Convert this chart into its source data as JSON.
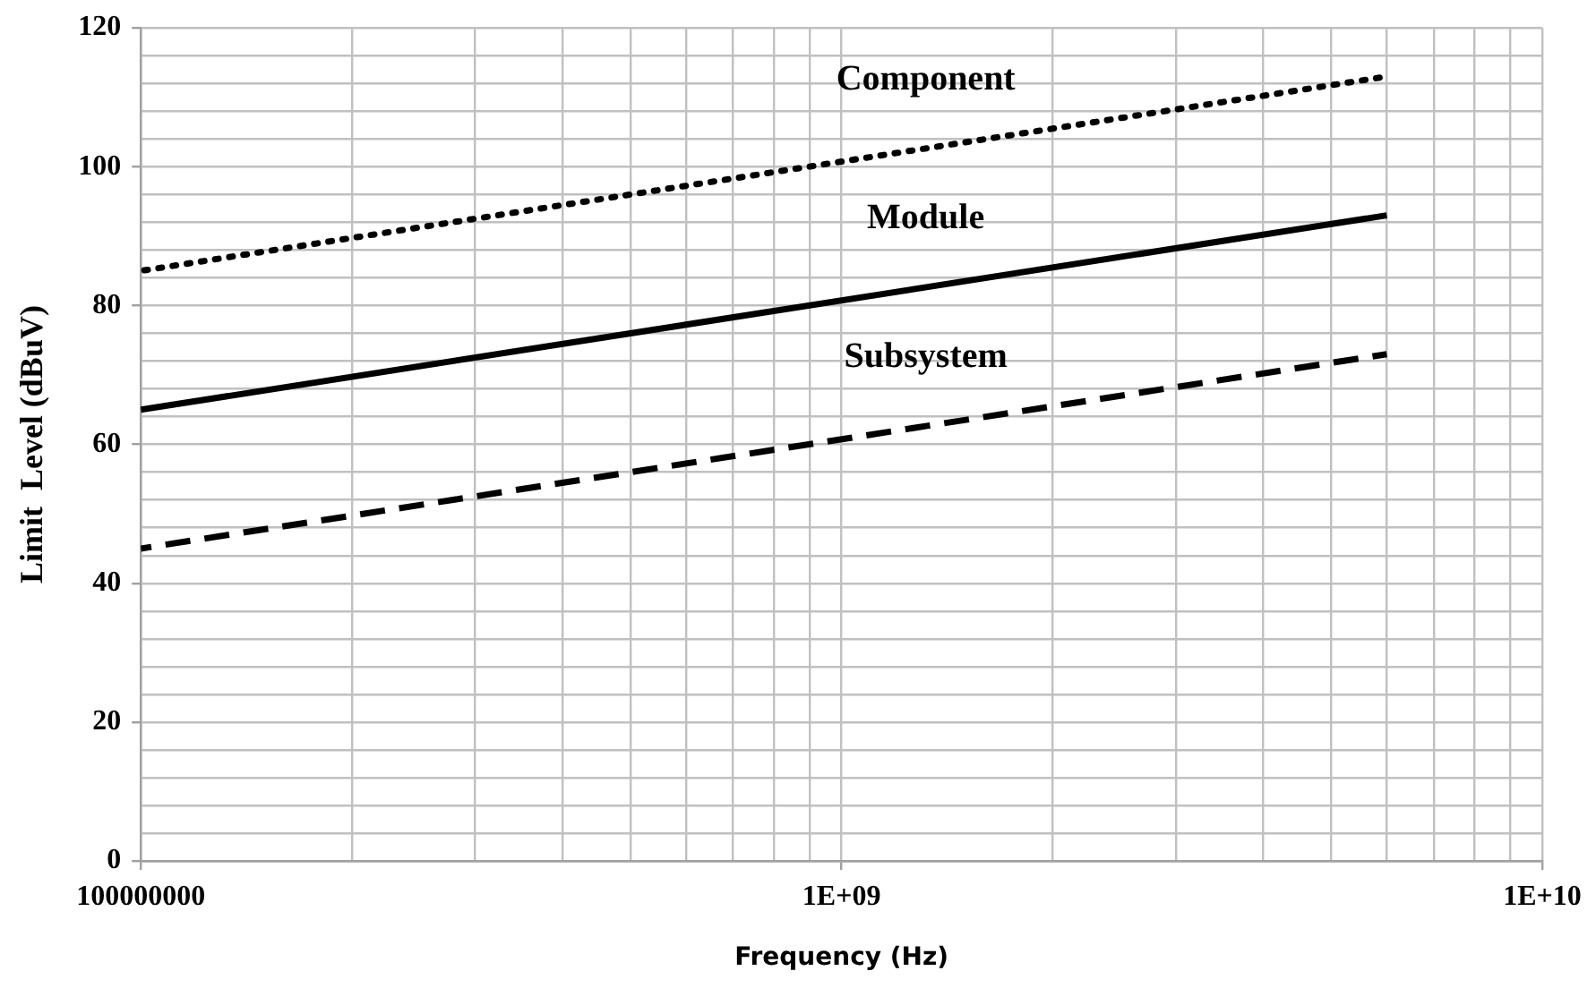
{
  "chart_data": {
    "type": "line",
    "xlabel": "Frequency (Hz)",
    "ylabel": "Limit  Level (dBuV)",
    "log": "x",
    "xlim": [
      100000000,
      10000000000
    ],
    "xticks": [
      {
        "value": 100000000,
        "label": "100000000"
      },
      {
        "value": 200000000,
        "label": null
      },
      {
        "value": 300000000,
        "label": null
      },
      {
        "value": 400000000,
        "label": null
      },
      {
        "value": 500000000,
        "label": null
      },
      {
        "value": 600000000,
        "label": null
      },
      {
        "value": 700000000,
        "label": null
      },
      {
        "value": 800000000,
        "label": null
      },
      {
        "value": 900000000,
        "label": null
      },
      {
        "value": 1000000000,
        "label": "1E+09"
      },
      {
        "value": 2000000000,
        "label": null
      },
      {
        "value": 3000000000,
        "label": null
      },
      {
        "value": 4000000000,
        "label": null
      },
      {
        "value": 5000000000,
        "label": null
      },
      {
        "value": 6000000000,
        "label": null
      },
      {
        "value": 7000000000,
        "label": null
      },
      {
        "value": 8000000000,
        "label": null
      },
      {
        "value": 9000000000,
        "label": null
      },
      {
        "value": 10000000000,
        "label": "1E+10"
      }
    ],
    "ylim": [
      0,
      120
    ],
    "yticks": [
      0,
      {
        "value": 4,
        "label": null
      },
      {
        "value": 8,
        "label": null
      },
      {
        "value": 12,
        "label": null
      },
      {
        "value": 16,
        "label": null
      },
      20,
      {
        "value": 24,
        "label": null
      },
      {
        "value": 28,
        "label": null
      },
      {
        "value": 32,
        "label": null
      },
      {
        "value": 36,
        "label": null
      },
      40,
      {
        "value": 44,
        "label": null
      },
      {
        "value": 48,
        "label": null
      },
      {
        "value": 52,
        "label": null
      },
      {
        "value": 56,
        "label": null
      },
      60,
      {
        "value": 64,
        "label": null
      },
      {
        "value": 68,
        "label": null
      },
      {
        "value": 72,
        "label": null
      },
      {
        "value": 76,
        "label": null
      },
      80,
      {
        "value": 84,
        "label": null
      },
      {
        "value": 88,
        "label": null
      },
      {
        "value": 92,
        "label": null
      },
      {
        "value": 96,
        "label": null
      },
      100,
      {
        "value": 104,
        "label": null
      },
      {
        "value": 108,
        "label": null
      },
      {
        "value": 112,
        "label": null
      },
      {
        "value": 116,
        "label": null
      },
      120
    ],
    "grid": true,
    "legend": false,
    "marker": "none",
    "x": [
      100000000,
      6000000000
    ],
    "series": [
      {
        "name": "Component",
        "color": "#000000",
        "values": [
          85,
          113
        ],
        "line_style": "dotted"
      },
      {
        "name": "Module",
        "color": "#000000",
        "values": [
          65,
          93
        ],
        "line_style": "solid"
      },
      {
        "name": "Subsystem",
        "color": "#000000",
        "values": [
          45,
          73
        ],
        "line_style": "dashed"
      }
    ]
  }
}
